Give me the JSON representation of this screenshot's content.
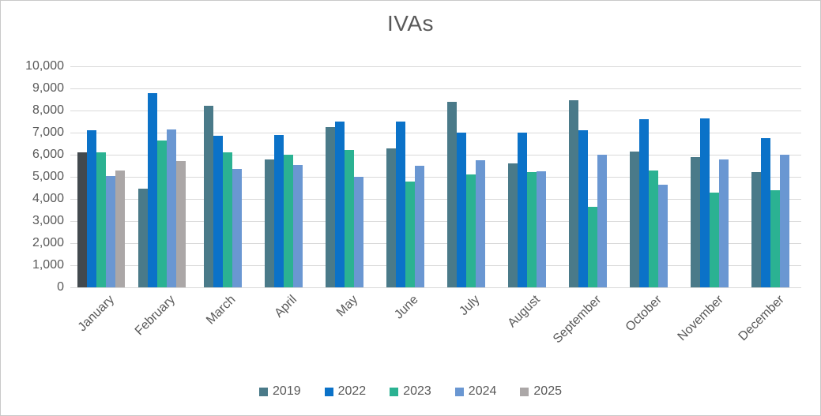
{
  "chart_data": {
    "type": "bar",
    "title": "IVAs",
    "categories": [
      "January",
      "February",
      "March",
      "April",
      "May",
      "June",
      "July",
      "August",
      "September",
      "October",
      "November",
      "December"
    ],
    "series": [
      {
        "name": "2019",
        "color": "#4a7a89",
        "values": [
          6100,
          4450,
          8200,
          5800,
          7250,
          6300,
          8400,
          5600,
          8450,
          6150,
          5900,
          5200
        ]
      },
      {
        "name": "2022",
        "color": "#0b72c8",
        "values": [
          7100,
          8800,
          6850,
          6900,
          7500,
          7500,
          7000,
          7000,
          7100,
          7600,
          7650,
          6750
        ]
      },
      {
        "name": "2023",
        "color": "#2bb292",
        "values": [
          6100,
          6650,
          6100,
          6000,
          6200,
          4800,
          5100,
          5200,
          3650,
          5300,
          4300,
          4400
        ]
      },
      {
        "name": "2024",
        "color": "#6a97d2",
        "values": [
          5050,
          7150,
          5350,
          5550,
          5000,
          5500,
          5750,
          5250,
          6000,
          4650,
          5800,
          6000
        ]
      },
      {
        "name": "2025",
        "color": "#aba7a7",
        "values": [
          5300,
          5700,
          null,
          null,
          null,
          null,
          null,
          null,
          null,
          null,
          null,
          null
        ]
      }
    ],
    "special_bar_colors": {
      "January": {
        "2019": "#42494e"
      }
    },
    "ylim": [
      0,
      10000
    ],
    "ytick_step": 1000,
    "grid": true,
    "legend_position": "bottom",
    "gridline_color": "#d9d9d9",
    "text_color": "#595959"
  }
}
